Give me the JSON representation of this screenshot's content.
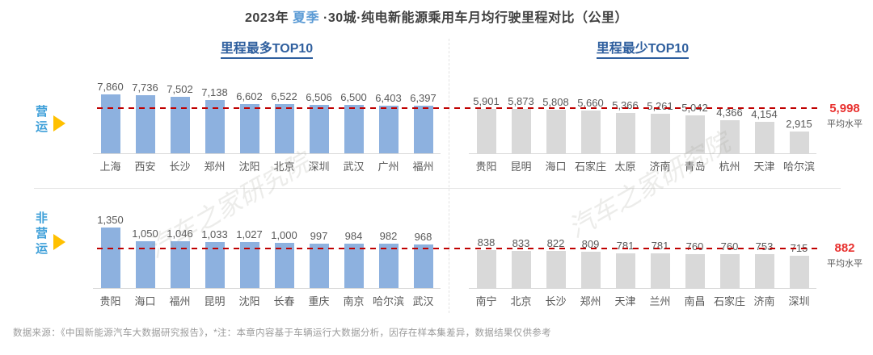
{
  "title": {
    "part1": "2023年 ",
    "season": "夏季",
    "part3": " ·30城·纯电新能源乘用车月均行驶里程对比（公里）"
  },
  "headers": {
    "left": "里程最多TOP10",
    "right": "里程最少TOP10"
  },
  "row_labels": [
    "营运",
    "非营运"
  ],
  "averages": [
    {
      "value": "5,998",
      "caption": "平均水平"
    },
    {
      "value": "882",
      "caption": "平均水平"
    }
  ],
  "footer": "数据来源：《中国新能源汽车大数据研究报告》，*注：本章内容基于车辆运行大数据分析，因存在样本集差异，数据结果仅供参考",
  "watermark": "汽车之家研究院",
  "colors": {
    "bar_blue": "#8DB1DF",
    "bar_gray": "#D9D9D9",
    "average_line_red": "#C00000",
    "average_value_red": "#E8312F",
    "header_blue": "#2F5F9E",
    "season_blue": "#5B9BD5",
    "row_label_blue": "#3FA0D9",
    "triangle_yellow": "#FFC000",
    "text_gray": "#595959"
  },
  "chart_data": [
    {
      "type": "bar",
      "panel": "top-left",
      "row": "营运",
      "section": "里程最多TOP10",
      "palette": "blue",
      "categories": [
        "上海",
        "西安",
        "长沙",
        "郑州",
        "沈阳",
        "北京",
        "深圳",
        "武汉",
        "广州",
        "福州"
      ],
      "values": [
        7860,
        7736,
        7502,
        7138,
        6602,
        6522,
        6506,
        6500,
        6403,
        6397
      ],
      "average_line": 5998,
      "ylim": [
        0,
        7860
      ]
    },
    {
      "type": "bar",
      "panel": "top-right",
      "row": "营运",
      "section": "里程最少TOP10",
      "palette": "gray",
      "categories": [
        "贵阳",
        "昆明",
        "海口",
        "石家庄",
        "太原",
        "济南",
        "青岛",
        "杭州",
        "天津",
        "哈尔滨"
      ],
      "values": [
        5901,
        5873,
        5808,
        5660,
        5366,
        5261,
        5042,
        4366,
        4154,
        2915
      ],
      "average_line": 5998,
      "ylim": [
        0,
        7860
      ]
    },
    {
      "type": "bar",
      "panel": "bottom-left",
      "row": "非营运",
      "section": "里程最多TOP10",
      "palette": "blue",
      "categories": [
        "贵阳",
        "海口",
        "福州",
        "昆明",
        "沈阳",
        "长春",
        "重庆",
        "南京",
        "哈尔滨",
        "武汉"
      ],
      "values": [
        1350,
        1050,
        1046,
        1033,
        1027,
        1000,
        997,
        984,
        982,
        968
      ],
      "average_line": 882,
      "ylim": [
        0,
        1350
      ]
    },
    {
      "type": "bar",
      "panel": "bottom-right",
      "row": "非营运",
      "section": "里程最少TOP10",
      "palette": "gray",
      "categories": [
        "南宁",
        "北京",
        "长沙",
        "郑州",
        "天津",
        "兰州",
        "南昌",
        "石家庄",
        "济南",
        "深圳"
      ],
      "values": [
        838,
        833,
        822,
        809,
        781,
        781,
        760,
        760,
        753,
        715
      ],
      "average_line": 882,
      "ylim": [
        0,
        1350
      ]
    }
  ]
}
